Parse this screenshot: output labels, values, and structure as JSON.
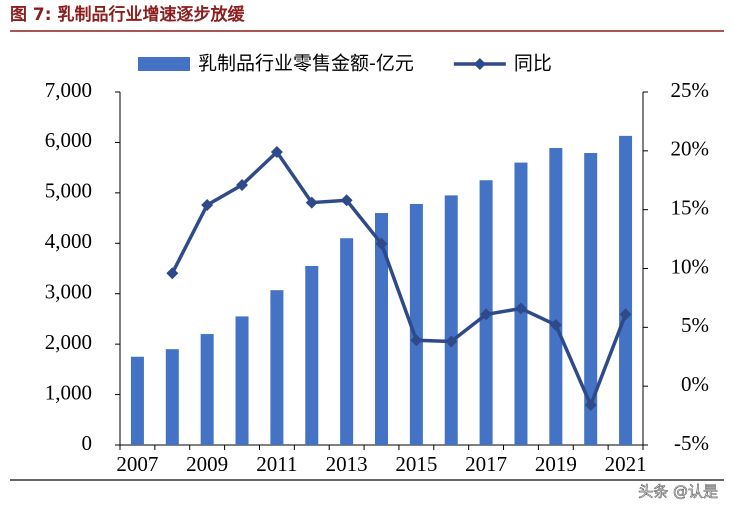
{
  "chart_data": {
    "type": "bar-line",
    "title": "图 7: 乳制品行业增速逐步放缓",
    "categories": [
      "2007",
      null,
      "2009",
      null,
      "2011",
      null,
      "2013",
      null,
      "2015",
      null,
      "2017",
      null,
      "2019",
      null,
      "2021"
    ],
    "series": [
      {
        "name": "乳制品行业零售金额-亿元",
        "type": "bar",
        "color": "#4472c4",
        "values": [
          1750,
          1900,
          2200,
          2550,
          3070,
          3550,
          4100,
          4600,
          4780,
          4950,
          5250,
          5600,
          5890,
          5790,
          6130
        ]
      },
      {
        "name": "同比",
        "type": "line",
        "axis": "y2",
        "color": "#2f4a8a",
        "values": [
          null,
          9.6,
          15.4,
          17.1,
          19.9,
          15.6,
          15.8,
          12.1,
          3.9,
          3.8,
          6.1,
          6.6,
          5.2,
          -1.6,
          6.1
        ]
      }
    ],
    "ylim": [
      0,
      7000
    ],
    "yticks": [
      0,
      {
        "value": 1000,
        "label": "1,000"
      },
      {
        "value": 2000,
        "label": "2,000"
      },
      {
        "value": 3000,
        "label": "3,000"
      },
      {
        "value": 4000,
        "label": "4,000"
      },
      {
        "value": 5000,
        "label": "5,000"
      },
      {
        "value": 6000,
        "label": "6,000"
      },
      {
        "value": 7000,
        "label": "7,000"
      }
    ],
    "y2lim": [
      -5,
      25
    ],
    "y2ticks": [
      {
        "value": -5,
        "label": "-5%"
      },
      {
        "value": 0,
        "label": "0%"
      },
      {
        "value": 5,
        "label": "5%"
      },
      {
        "value": 10,
        "label": "10%"
      },
      {
        "value": 15,
        "label": "15%"
      },
      {
        "value": 20,
        "label": "20%"
      },
      {
        "value": 25,
        "label": "25%"
      }
    ],
    "legend": "top",
    "annotation": "头条 @认是"
  }
}
